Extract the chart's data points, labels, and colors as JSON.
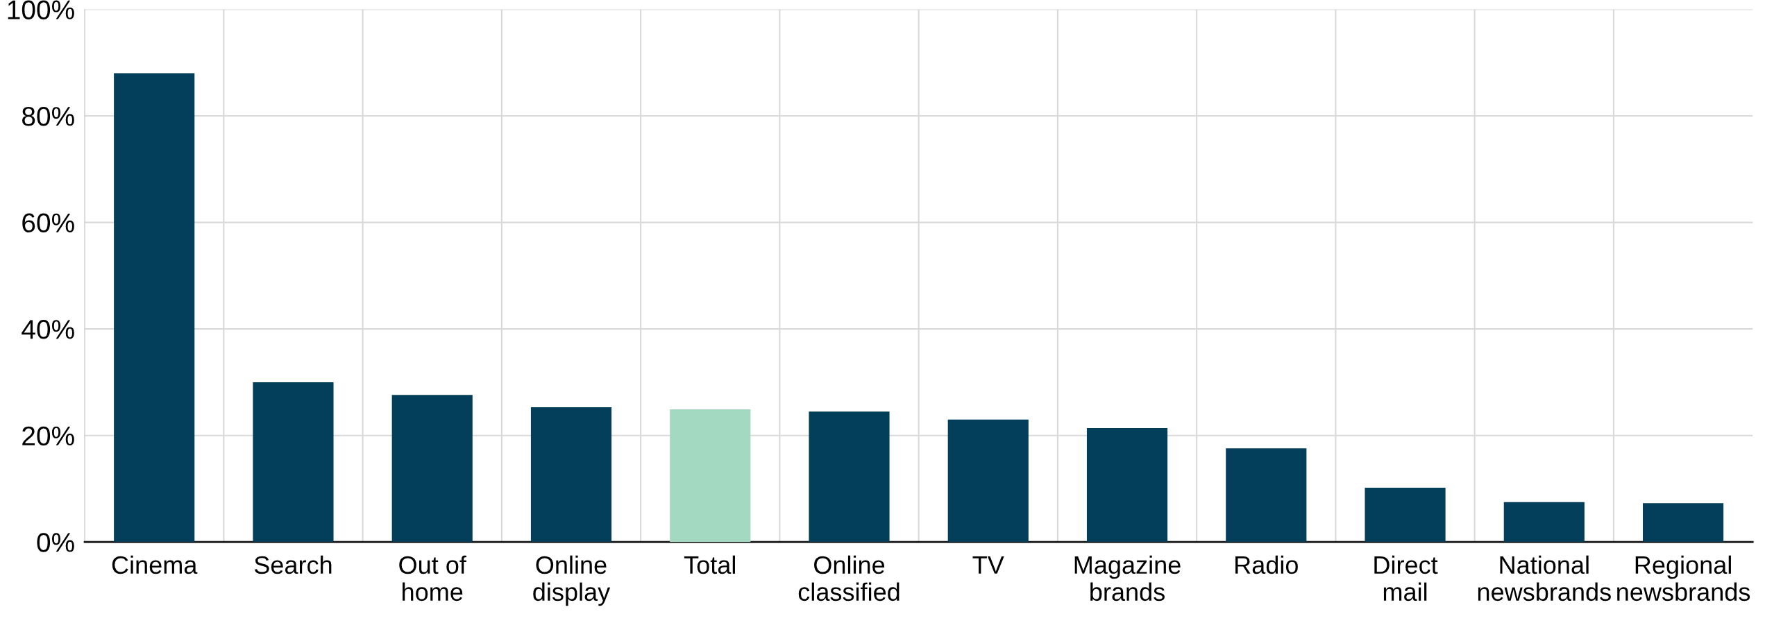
{
  "chart_data": {
    "type": "bar",
    "categories": [
      "Cinema",
      "Search",
      "Out of\nhome",
      "Online\ndisplay",
      "Total",
      "Online\nclassified",
      "TV",
      "Magazine\nbrands",
      "Radio",
      "Direct\nmail",
      "National\nnewsbrands",
      "Regional\nnewsbrands"
    ],
    "values": [
      88,
      30,
      27.6,
      25.3,
      24.9,
      24.5,
      23,
      21.4,
      17.6,
      10.2,
      7.5,
      7.3
    ],
    "colors": [
      "#033f5a",
      "#033f5a",
      "#033f5a",
      "#033f5a",
      "#a3d9c0",
      "#033f5a",
      "#033f5a",
      "#033f5a",
      "#033f5a",
      "#033f5a",
      "#033f5a",
      "#033f5a"
    ],
    "ylim": [
      0,
      100
    ],
    "yticks": [
      {
        "value": 0,
        "label": "0%"
      },
      {
        "value": 20,
        "label": "20%"
      },
      {
        "value": 40,
        "label": "40%"
      },
      {
        "value": 60,
        "label": "60%"
      },
      {
        "value": 80,
        "label": "80%"
      },
      {
        "value": 100,
        "label": "100%"
      }
    ],
    "grid": true
  }
}
